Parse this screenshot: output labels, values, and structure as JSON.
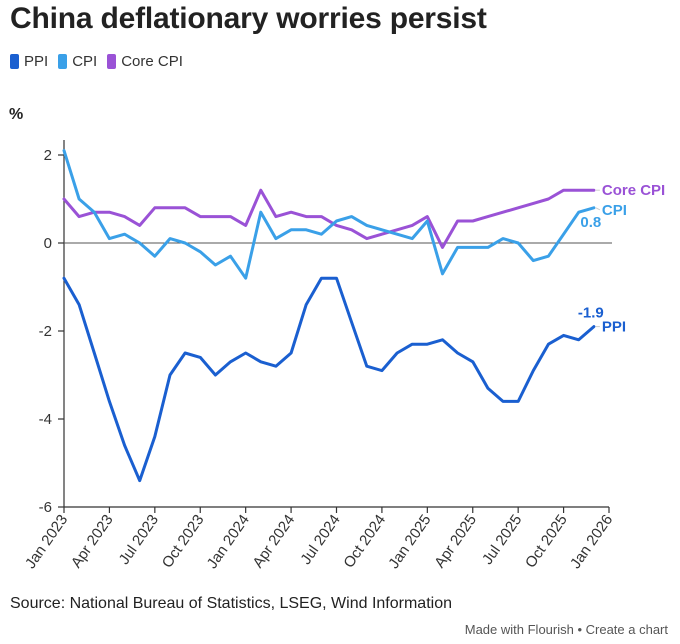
{
  "title": "China deflationary worries persist",
  "unit_label": "%",
  "source": "Source: National Bureau of Statistics, LSEG, Wind Information",
  "credit": "Made with Flourish • Create a chart",
  "colors": {
    "PPI": "#1a5fd0",
    "CPI": "#3aa0e8",
    "Core CPI": "#9a52d6"
  },
  "chart_data": {
    "type": "line",
    "title": "China deflationary worries persist",
    "ylabel": "%",
    "ylim": [
      -6,
      2.2
    ],
    "yticks": [
      2,
      0,
      -2,
      -4,
      -6
    ],
    "grid": false,
    "legend": "top-left",
    "x_start": "Jan 2023",
    "x": [
      "Jan 2023",
      "Feb 2023",
      "Mar 2023",
      "Apr 2023",
      "May 2023",
      "Jun 2023",
      "Jul 2023",
      "Aug 2023",
      "Sep 2023",
      "Oct 2023",
      "Nov 2023",
      "Dec 2023",
      "Jan 2024",
      "Feb 2024",
      "Mar 2024",
      "Apr 2024",
      "May 2024",
      "Jun 2024",
      "Jul 2024",
      "Aug 2024",
      "Sep 2024",
      "Oct 2024",
      "Nov 2024",
      "Dec 2024",
      "Jan 2025",
      "Feb 2025",
      "Mar 2025",
      "Apr 2025",
      "May 2025",
      "Jun 2025",
      "Jul 2025",
      "Aug 2025",
      "Sep 2025",
      "Oct 2025",
      "Nov 2025",
      "Dec 2025"
    ],
    "xticks": [
      "Jan 2023",
      "Apr 2023",
      "Jul 2023",
      "Oct 2023",
      "Jan 2024",
      "Apr 2024",
      "Jul 2024",
      "Oct 2024",
      "Jan 2025",
      "Apr 2025",
      "Jul 2025",
      "Oct 2025",
      "Jan 2026"
    ],
    "series": [
      {
        "name": "PPI",
        "values": [
          -0.8,
          -1.4,
          -2.5,
          -3.6,
          -4.6,
          -5.4,
          -4.4,
          -3.0,
          -2.5,
          -2.6,
          -3.0,
          -2.7,
          -2.5,
          -2.7,
          -2.8,
          -2.5,
          -1.4,
          -0.8,
          -0.8,
          -1.8,
          -2.8,
          -2.9,
          -2.5,
          -2.3,
          -2.3,
          -2.2,
          -2.5,
          -2.7,
          -3.3,
          -3.6,
          -3.6,
          -2.9,
          -2.3,
          -2.1,
          -2.2,
          -1.9
        ],
        "end_label": "PPI",
        "end_value": "-1.9"
      },
      {
        "name": "CPI",
        "values": [
          2.1,
          1.0,
          0.7,
          0.1,
          0.2,
          0.0,
          -0.3,
          0.1,
          0.0,
          -0.2,
          -0.5,
          -0.3,
          -0.8,
          0.7,
          0.1,
          0.3,
          0.3,
          0.2,
          0.5,
          0.6,
          0.4,
          0.3,
          0.2,
          0.1,
          0.5,
          -0.7,
          -0.1,
          -0.1,
          -0.1,
          0.1,
          0.0,
          -0.4,
          -0.3,
          0.2,
          0.7,
          0.8
        ],
        "end_label": "CPI",
        "end_value": "0.8"
      },
      {
        "name": "Core CPI",
        "values": [
          1.0,
          0.6,
          0.7,
          0.7,
          0.6,
          0.4,
          0.8,
          0.8,
          0.8,
          0.6,
          0.6,
          0.6,
          0.4,
          1.2,
          0.6,
          0.7,
          0.6,
          0.6,
          0.4,
          0.3,
          0.1,
          0.2,
          0.3,
          0.4,
          0.6,
          -0.1,
          0.5,
          0.5,
          0.6,
          0.7,
          0.8,
          0.9,
          1.0,
          1.2,
          1.2,
          1.2
        ],
        "end_label": "Core CPI",
        "end_value": ""
      }
    ]
  }
}
